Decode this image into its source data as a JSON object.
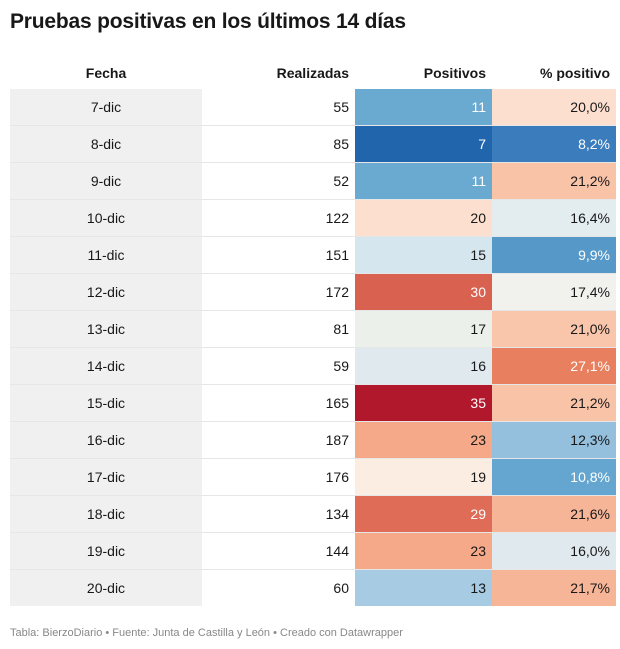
{
  "title": "Pruebas positivas en los últimos 14 días",
  "footer": "Tabla: BierzoDiario • Fuente: Junta de Castilla y León • Creado con Datawrapper",
  "chart_data": {
    "type": "table",
    "title": "Pruebas positivas en los últimos 14 días",
    "columns": [
      "Fecha",
      "Realizadas",
      "Positivos",
      "% positivo"
    ],
    "rows": [
      {
        "fecha": "7-dic",
        "realizadas": "55",
        "positivos": "11",
        "pct": "20,0%",
        "positivos_color": "#6aaad1",
        "pct_color": "#fcdfcf"
      },
      {
        "fecha": "8-dic",
        "realizadas": "85",
        "positivos": "7",
        "pct": "8,2%",
        "positivos_color": "#2166ac",
        "pct_color": "#3a7cbc"
      },
      {
        "fecha": "9-dic",
        "realizadas": "52",
        "positivos": "11",
        "pct": "21,2%",
        "positivos_color": "#6aaad1",
        "pct_color": "#f9c3a8"
      },
      {
        "fecha": "10-dic",
        "realizadas": "122",
        "positivos": "20",
        "pct": "16,4%",
        "positivos_color": "#fcdfcf",
        "pct_color": "#e3ecef"
      },
      {
        "fecha": "11-dic",
        "realizadas": "151",
        "positivos": "15",
        "pct": "9,9%",
        "positivos_color": "#d6e6ee",
        "pct_color": "#5698c8"
      },
      {
        "fecha": "12-dic",
        "realizadas": "172",
        "positivos": "30",
        "pct": "17,4%",
        "positivos_color": "#d86150",
        "pct_color": "#f1f1ee"
      },
      {
        "fecha": "13-dic",
        "realizadas": "81",
        "positivos": "17",
        "pct": "21,0%",
        "positivos_color": "#ecf0ea",
        "pct_color": "#f9c5ab"
      },
      {
        "fecha": "14-dic",
        "realizadas": "59",
        "positivos": "16",
        "pct": "27,1%",
        "positivos_color": "#e0eaee",
        "pct_color": "#e8805f"
      },
      {
        "fecha": "15-dic",
        "realizadas": "165",
        "positivos": "35",
        "pct": "21,2%",
        "positivos_color": "#b2182b",
        "pct_color": "#f9c3a8"
      },
      {
        "fecha": "16-dic",
        "realizadas": "187",
        "positivos": "23",
        "pct": "12,3%",
        "positivos_color": "#f6a989",
        "pct_color": "#94c0dd"
      },
      {
        "fecha": "17-dic",
        "realizadas": "176",
        "positivos": "19",
        "pct": "10,8%",
        "positivos_color": "#fbede2",
        "pct_color": "#64a6cf"
      },
      {
        "fecha": "18-dic",
        "realizadas": "134",
        "positivos": "29",
        "pct": "21,6%",
        "positivos_color": "#de6c57",
        "pct_color": "#f7b598"
      },
      {
        "fecha": "19-dic",
        "realizadas": "144",
        "positivos": "23",
        "pct": "16,0%",
        "positivos_color": "#f6a989",
        "pct_color": "#e0eaee"
      },
      {
        "fecha": "20-dic",
        "realizadas": "60",
        "positivos": "13",
        "pct": "21,7%",
        "positivos_color": "#a6cbe2",
        "pct_color": "#f7b598"
      }
    ]
  }
}
